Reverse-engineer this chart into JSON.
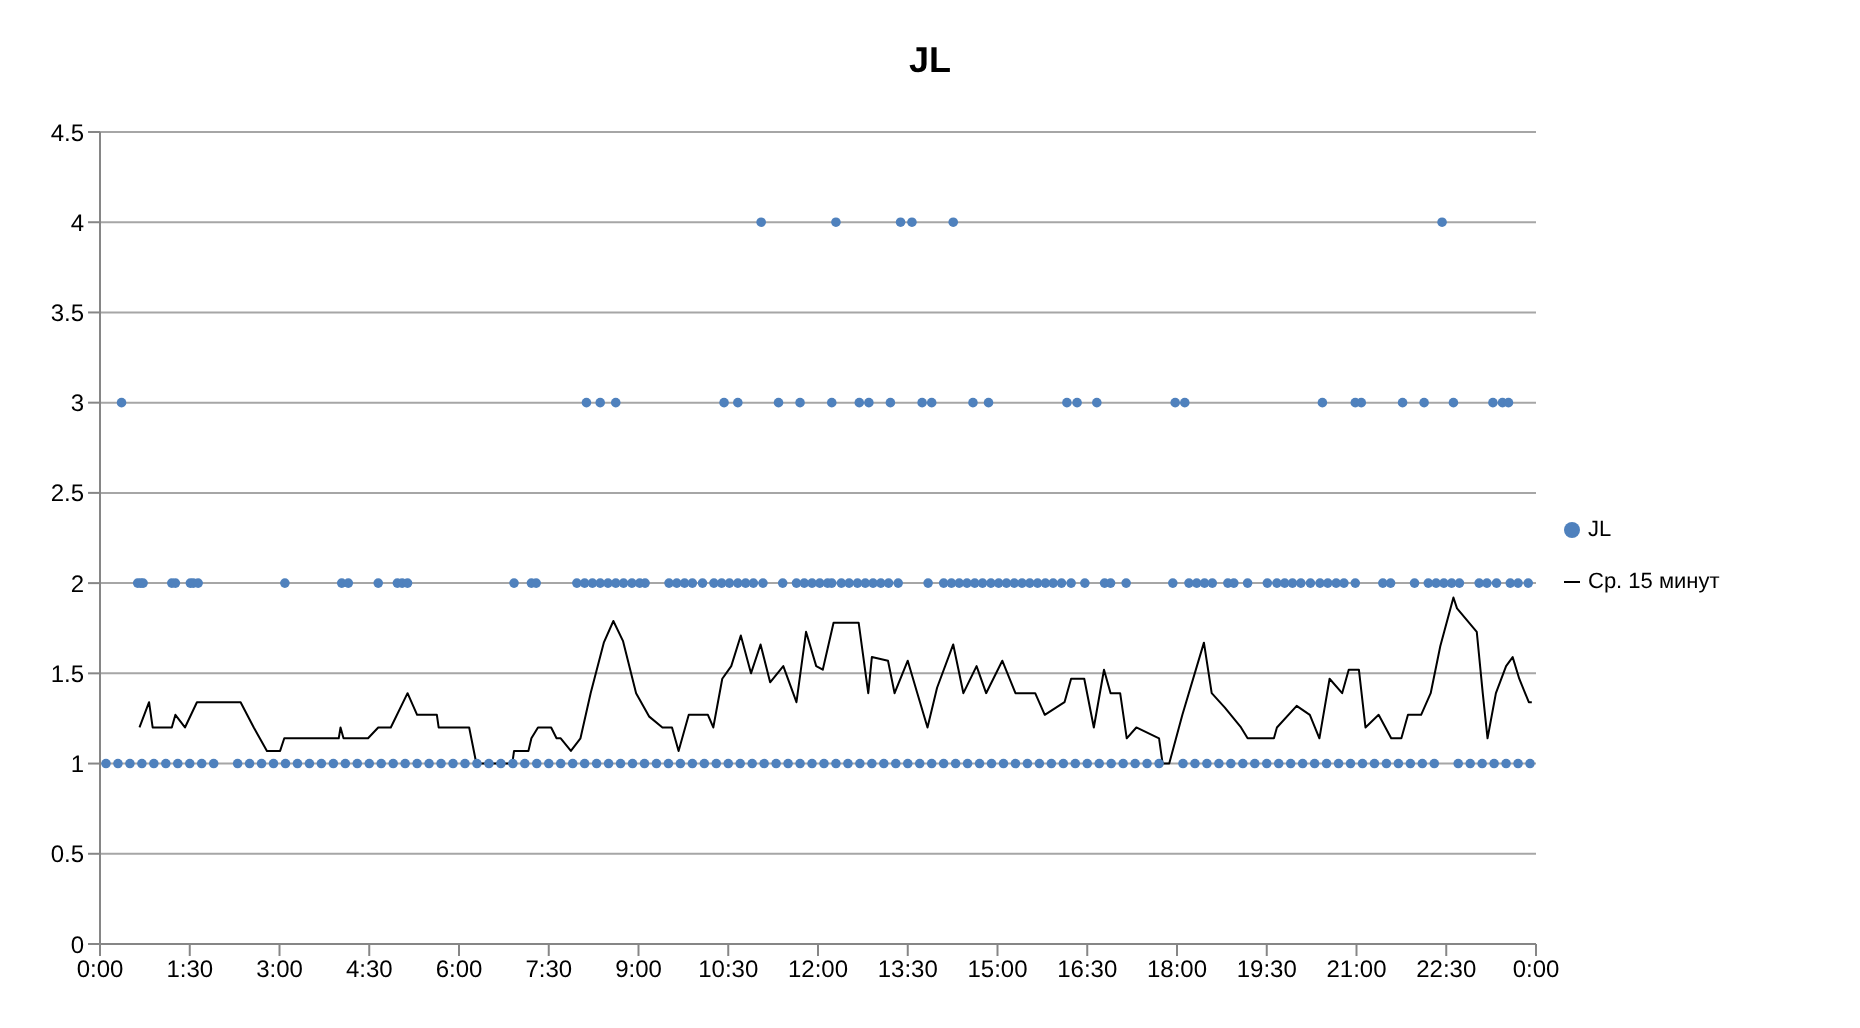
{
  "chart_data": {
    "type": "scatter",
    "title": "JL",
    "xlim": [
      0,
      24
    ],
    "xticks": [
      {
        "value": 0,
        "label": "0:00"
      },
      {
        "value": 1.5,
        "label": "1:30"
      },
      {
        "value": 3,
        "label": "3:00"
      },
      {
        "value": 4.5,
        "label": "4:30"
      },
      {
        "value": 6,
        "label": "6:00"
      },
      {
        "value": 7.5,
        "label": "7:30"
      },
      {
        "value": 9,
        "label": "9:00"
      },
      {
        "value": 10.5,
        "label": "10:30"
      },
      {
        "value": 12,
        "label": "12:00"
      },
      {
        "value": 13.5,
        "label": "13:30"
      },
      {
        "value": 15,
        "label": "15:00"
      },
      {
        "value": 16.5,
        "label": "16:30"
      },
      {
        "value": 18,
        "label": "18:00"
      },
      {
        "value": 19.5,
        "label": "19:30"
      },
      {
        "value": 21,
        "label": "21:00"
      },
      {
        "value": 22.5,
        "label": "22:30"
      },
      {
        "value": 24,
        "label": "0:00"
      }
    ],
    "ylim": [
      0,
      4.5
    ],
    "yticks": [
      0,
      0.5,
      1,
      1.5,
      2,
      2.5,
      3,
      3.5,
      4,
      4.5
    ],
    "grid": "y",
    "legend": "right",
    "series": [
      {
        "name": "JL",
        "marker": "circle",
        "color": "#4f81bd",
        "x": [
          0.1,
          0.3,
          0.5,
          0.7,
          0.9,
          1.1,
          1.3,
          1.5,
          1.7,
          1.9,
          2.3,
          2.5,
          2.7,
          2.9,
          3.1,
          3.3,
          3.5,
          3.7,
          3.9,
          4.1,
          4.3,
          4.5,
          4.7,
          4.9,
          5.1,
          5.3,
          5.5,
          5.7,
          5.9,
          6.1,
          6.3,
          6.5,
          6.7,
          6.9,
          7.1,
          7.3,
          7.5,
          7.7,
          7.9,
          8.1,
          8.3,
          8.5,
          8.7,
          8.9,
          9.1,
          9.3,
          9.5,
          9.7,
          9.9,
          10.1,
          10.3,
          10.5,
          10.7,
          10.9,
          11.1,
          11.3,
          11.5,
          11.7,
          11.9,
          12.1,
          12.3,
          12.5,
          12.7,
          12.9,
          13.1,
          13.3,
          13.5,
          13.7,
          13.9,
          14.1,
          14.3,
          14.5,
          14.7,
          14.9,
          15.1,
          15.3,
          15.5,
          15.7,
          15.9,
          16.1,
          16.3,
          16.5,
          16.7,
          16.9,
          17.1,
          17.3,
          17.5,
          17.7,
          18.1,
          18.3,
          18.5,
          18.7,
          18.9,
          19.1,
          19.3,
          19.5,
          19.7,
          19.9,
          20.1,
          20.3,
          20.5,
          20.7,
          20.9,
          21.1,
          21.3,
          21.5,
          21.7,
          21.9,
          22.1,
          22.3,
          22.7,
          22.9,
          23.1,
          23.3,
          23.5,
          23.7,
          23.9,
          0.63,
          0.68,
          0.72,
          1.2,
          1.26,
          1.51,
          1.56,
          1.64,
          3.09,
          4.04,
          4.15,
          4.65,
          4.97,
          5.05,
          5.14,
          6.92,
          7.21,
          7.29,
          7.97,
          8.1,
          8.23,
          8.36,
          8.49,
          8.62,
          8.75,
          8.89,
          9.02,
          9.11,
          9.51,
          9.64,
          9.77,
          9.9,
          10.07,
          10.26,
          10.39,
          10.52,
          10.66,
          10.79,
          10.92,
          11.08,
          11.41,
          11.64,
          11.77,
          11.9,
          12.03,
          12.16,
          12.23,
          12.39,
          12.52,
          12.66,
          12.79,
          12.92,
          13.05,
          13.18,
          13.34,
          13.84,
          14.1,
          14.23,
          14.36,
          14.49,
          14.62,
          14.75,
          14.89,
          15.02,
          15.15,
          15.28,
          15.41,
          15.54,
          15.67,
          15.8,
          15.93,
          16.07,
          16.23,
          16.46,
          16.79,
          16.89,
          17.15,
          17.93,
          18.2,
          18.33,
          18.46,
          18.59,
          18.85,
          18.95,
          19.18,
          19.51,
          19.67,
          19.8,
          19.93,
          20.07,
          20.23,
          20.39,
          20.52,
          20.66,
          20.79,
          20.98,
          21.44,
          21.57,
          21.97,
          22.2,
          22.33,
          22.46,
          22.59,
          22.72,
          23.05,
          23.18,
          23.34,
          23.57,
          23.7,
          23.87,
          0.36,
          8.13,
          8.36,
          8.62,
          10.43,
          10.66,
          11.34,
          11.7,
          12.23,
          12.69,
          12.85,
          13.21,
          13.74,
          13.9,
          14.59,
          14.85,
          16.16,
          16.33,
          16.66,
          17.97,
          18.13,
          20.43,
          20.98,
          21.08,
          21.77,
          22.13,
          22.62,
          23.28,
          23.44,
          23.54,
          11.05,
          12.3,
          13.38,
          13.57,
          14.26,
          22.43
        ],
        "values": [
          1,
          1,
          1,
          1,
          1,
          1,
          1,
          1,
          1,
          1,
          1,
          1,
          1,
          1,
          1,
          1,
          1,
          1,
          1,
          1,
          1,
          1,
          1,
          1,
          1,
          1,
          1,
          1,
          1,
          1,
          1,
          1,
          1,
          1,
          1,
          1,
          1,
          1,
          1,
          1,
          1,
          1,
          1,
          1,
          1,
          1,
          1,
          1,
          1,
          1,
          1,
          1,
          1,
          1,
          1,
          1,
          1,
          1,
          1,
          1,
          1,
          1,
          1,
          1,
          1,
          1,
          1,
          1,
          1,
          1,
          1,
          1,
          1,
          1,
          1,
          1,
          1,
          1,
          1,
          1,
          1,
          1,
          1,
          1,
          1,
          1,
          1,
          1,
          1,
          1,
          1,
          1,
          1,
          1,
          1,
          1,
          1,
          1,
          1,
          1,
          1,
          1,
          1,
          1,
          1,
          1,
          1,
          1,
          1,
          1,
          1,
          1,
          1,
          1,
          1,
          1,
          1,
          2,
          2,
          2,
          2,
          2,
          2,
          2,
          2,
          2,
          2,
          2,
          2,
          2,
          2,
          2,
          2,
          2,
          2,
          2,
          2,
          2,
          2,
          2,
          2,
          2,
          2,
          2,
          2,
          2,
          2,
          2,
          2,
          2,
          2,
          2,
          2,
          2,
          2,
          2,
          2,
          2,
          2,
          2,
          2,
          2,
          2,
          2,
          2,
          2,
          2,
          2,
          2,
          2,
          2,
          2,
          2,
          2,
          2,
          2,
          2,
          2,
          2,
          2,
          2,
          2,
          2,
          2,
          2,
          2,
          2,
          2,
          2,
          2,
          2,
          2,
          2,
          2,
          2,
          2,
          2,
          2,
          2,
          2,
          2,
          2,
          2,
          2,
          2,
          2,
          2,
          2,
          2,
          2,
          2,
          2,
          2,
          2,
          2,
          2,
          2,
          2,
          2,
          2,
          2,
          2,
          2,
          2,
          2,
          2,
          2,
          3,
          3,
          3,
          3,
          3,
          3,
          3,
          3,
          3,
          3,
          3,
          3,
          3,
          3,
          3,
          3,
          3,
          3,
          3,
          3,
          3,
          3,
          3,
          3,
          3,
          3,
          3,
          3,
          3,
          3,
          4,
          4,
          4,
          4,
          4,
          4
        ]
      },
      {
        "name": "Ср. 15 минут",
        "type": "line",
        "marker": "none",
        "line_style": "solid",
        "color": "#000000",
        "x": [
          0.66,
          0.82,
          0.88,
          1.2,
          1.26,
          1.42,
          1.62,
          2.35,
          2.57,
          2.79,
          3.01,
          3.08,
          3.99,
          4.02,
          4.07,
          4.48,
          4.65,
          4.86,
          5.14,
          5.3,
          5.63,
          5.66,
          6.17,
          6.29,
          6.89,
          6.92,
          7.16,
          7.21,
          7.32,
          7.54,
          7.63,
          7.7,
          7.87,
          8.03,
          8.2,
          8.42,
          8.58,
          8.74,
          8.96,
          9.18,
          9.4,
          9.56,
          9.67,
          9.84,
          10.16,
          10.25,
          10.4,
          10.55,
          10.71,
          10.88,
          11.04,
          11.2,
          11.42,
          11.64,
          11.8,
          11.97,
          12.08,
          12.26,
          12.68,
          12.84,
          12.9,
          13.17,
          13.28,
          13.5,
          13.66,
          13.83,
          13.99,
          14.26,
          14.43,
          14.65,
          14.81,
          15.08,
          15.3,
          15.63,
          15.79,
          16.12,
          16.23,
          16.45,
          16.61,
          16.78,
          16.89,
          17.05,
          17.16,
          17.32,
          17.7,
          17.76,
          17.87,
          18.09,
          18.45,
          18.58,
          18.8,
          19.07,
          19.18,
          19.62,
          19.67,
          20.0,
          20.22,
          20.38,
          20.55,
          20.76,
          20.87,
          21.04,
          21.15,
          21.37,
          21.58,
          21.75,
          21.86,
          22.08,
          22.24,
          22.4,
          22.62,
          22.68,
          23.01,
          23.11,
          23.19,
          23.33,
          23.5,
          23.61,
          23.72,
          23.88,
          23.93
        ],
        "values": [
          1.2,
          1.34,
          1.2,
          1.2,
          1.27,
          1.2,
          1.34,
          1.34,
          1.2,
          1.07,
          1.07,
          1.14,
          1.14,
          1.2,
          1.14,
          1.14,
          1.2,
          1.2,
          1.39,
          1.27,
          1.27,
          1.2,
          1.2,
          1.0,
          1.0,
          1.07,
          1.07,
          1.14,
          1.2,
          1.2,
          1.14,
          1.14,
          1.07,
          1.14,
          1.39,
          1.67,
          1.79,
          1.68,
          1.39,
          1.26,
          1.2,
          1.2,
          1.07,
          1.27,
          1.27,
          1.2,
          1.47,
          1.54,
          1.71,
          1.5,
          1.66,
          1.45,
          1.54,
          1.34,
          1.73,
          1.54,
          1.52,
          1.78,
          1.78,
          1.39,
          1.59,
          1.57,
          1.39,
          1.57,
          1.39,
          1.2,
          1.42,
          1.66,
          1.39,
          1.54,
          1.39,
          1.57,
          1.39,
          1.39,
          1.27,
          1.34,
          1.47,
          1.47,
          1.2,
          1.52,
          1.39,
          1.39,
          1.14,
          1.2,
          1.14,
          1.0,
          1.0,
          1.27,
          1.67,
          1.39,
          1.31,
          1.2,
          1.14,
          1.14,
          1.2,
          1.32,
          1.27,
          1.14,
          1.47,
          1.39,
          1.52,
          1.52,
          1.2,
          1.27,
          1.14,
          1.14,
          1.27,
          1.27,
          1.39,
          1.65,
          1.92,
          1.86,
          1.73,
          1.39,
          1.14,
          1.39,
          1.54,
          1.59,
          1.47,
          1.34,
          1.34
        ]
      }
    ]
  }
}
